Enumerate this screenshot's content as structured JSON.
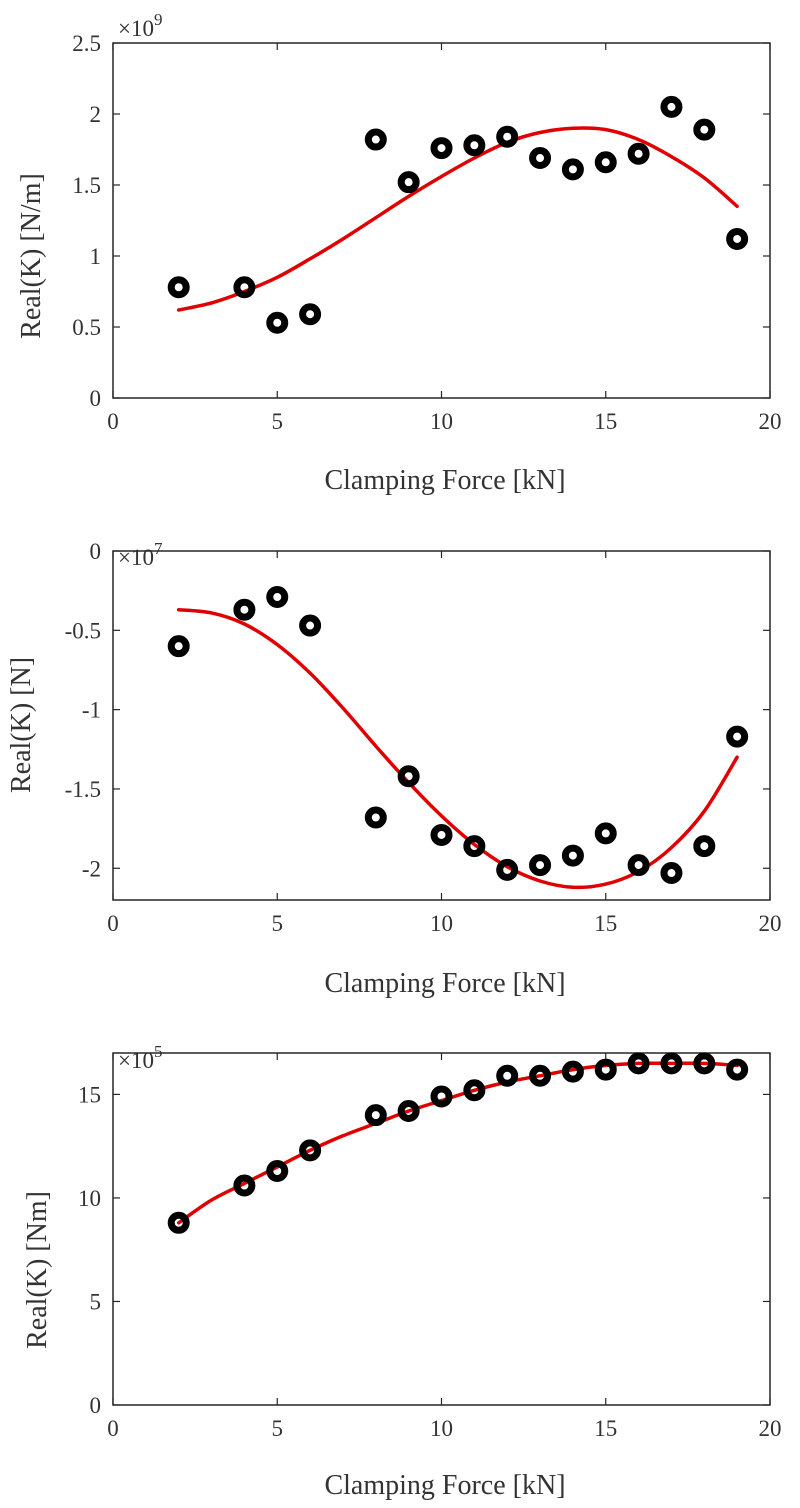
{
  "chart_data": [
    {
      "type": "scatter",
      "xlabel": "Clamping Force [kN]",
      "ylabel": "Real(K) [N/m]",
      "exponent_base": "×10",
      "exponent_power": "9",
      "xlim": [
        0,
        20
      ],
      "ylim": [
        0,
        2.5
      ],
      "xticks": [
        0,
        5,
        10,
        15,
        20
      ],
      "yticks": [
        0,
        0.5,
        1,
        1.5,
        2,
        2.5
      ],
      "xtick_labels": [
        "0",
        "5",
        "10",
        "15",
        "20"
      ],
      "ytick_labels": [
        "0",
        "0.5",
        "1",
        "1.5",
        "2",
        "2.5"
      ],
      "x": [
        2,
        4,
        5,
        6,
        8,
        9,
        10,
        11,
        12,
        13,
        14,
        15,
        16,
        17,
        18,
        19
      ],
      "y": [
        0.78,
        0.78,
        0.53,
        0.59,
        1.82,
        1.52,
        1.76,
        1.78,
        1.84,
        1.69,
        1.61,
        1.66,
        1.72,
        2.05,
        1.89,
        1.12
      ],
      "fit": {
        "x": [
          2,
          3,
          4,
          5,
          6,
          7,
          8,
          9,
          10,
          11,
          12,
          13,
          14,
          15,
          16,
          17,
          18,
          19
        ],
        "y": [
          0.62,
          0.67,
          0.75,
          0.85,
          0.98,
          1.12,
          1.27,
          1.42,
          1.56,
          1.69,
          1.8,
          1.87,
          1.9,
          1.89,
          1.82,
          1.7,
          1.55,
          1.35
        ]
      },
      "marker_color": "#000000",
      "fit_color": "#e00000",
      "grid": false
    },
    {
      "type": "scatter",
      "xlabel": "Clamping Force [kN]",
      "ylabel": "Real(K) [N]",
      "exponent_base": "×10",
      "exponent_power": "7",
      "xlim": [
        0,
        20
      ],
      "ylim": [
        -2.2,
        0
      ],
      "xticks": [
        0,
        5,
        10,
        15,
        20
      ],
      "yticks": [
        -2,
        -1.5,
        -1,
        -0.5,
        0
      ],
      "xtick_labels": [
        "0",
        "5",
        "10",
        "15",
        "20"
      ],
      "ytick_labels": [
        "-2",
        "-1.5",
        "-1",
        "-0.5",
        "0"
      ],
      "x": [
        2,
        4,
        5,
        6,
        8,
        9,
        10,
        11,
        12,
        13,
        14,
        15,
        16,
        17,
        18,
        19
      ],
      "y": [
        -0.6,
        -0.37,
        -0.29,
        -0.47,
        -1.68,
        -1.42,
        -1.79,
        -1.86,
        -2.01,
        -1.98,
        -1.92,
        -1.78,
        -1.98,
        -2.03,
        -1.86,
        -1.17
      ],
      "fit": {
        "x": [
          2,
          3,
          4,
          5,
          6,
          7,
          8,
          9,
          10,
          11,
          12,
          13,
          14,
          15,
          16,
          17,
          18,
          19
        ],
        "y": [
          -0.37,
          -0.39,
          -0.46,
          -0.59,
          -0.77,
          -0.99,
          -1.23,
          -1.46,
          -1.67,
          -1.85,
          -1.99,
          -2.08,
          -2.12,
          -2.1,
          -2.02,
          -1.87,
          -1.64,
          -1.3
        ]
      },
      "marker_color": "#000000",
      "fit_color": "#e00000",
      "grid": false
    },
    {
      "type": "scatter",
      "xlabel": "Clamping Force [kN]",
      "ylabel": "Real(K) [Nm]",
      "exponent_base": "×10",
      "exponent_power": "5",
      "xlim": [
        0,
        20
      ],
      "ylim": [
        0,
        17
      ],
      "xticks": [
        0,
        5,
        10,
        15,
        20
      ],
      "yticks": [
        0,
        5,
        10,
        15
      ],
      "xtick_labels": [
        "0",
        "5",
        "10",
        "15",
        "20"
      ],
      "ytick_labels": [
        "0",
        "5",
        "10",
        "15"
      ],
      "x": [
        2,
        4,
        5,
        6,
        8,
        9,
        10,
        11,
        12,
        13,
        14,
        15,
        16,
        17,
        18,
        19
      ],
      "y": [
        8.8,
        10.6,
        11.3,
        12.3,
        14.0,
        14.2,
        14.9,
        15.2,
        15.9,
        15.9,
        16.1,
        16.2,
        16.5,
        16.5,
        16.5,
        16.2
      ],
      "fit": {
        "x": [
          2,
          3,
          4,
          5,
          6,
          7,
          8,
          9,
          10,
          11,
          12,
          13,
          14,
          15,
          16,
          17,
          18,
          19
        ],
        "y": [
          8.8,
          9.9,
          10.7,
          11.5,
          12.3,
          13.0,
          13.6,
          14.2,
          14.7,
          15.2,
          15.6,
          15.9,
          16.2,
          16.4,
          16.5,
          16.5,
          16.5,
          16.4
        ]
      },
      "marker_color": "#000000",
      "fit_color": "#e00000",
      "grid": false
    }
  ]
}
